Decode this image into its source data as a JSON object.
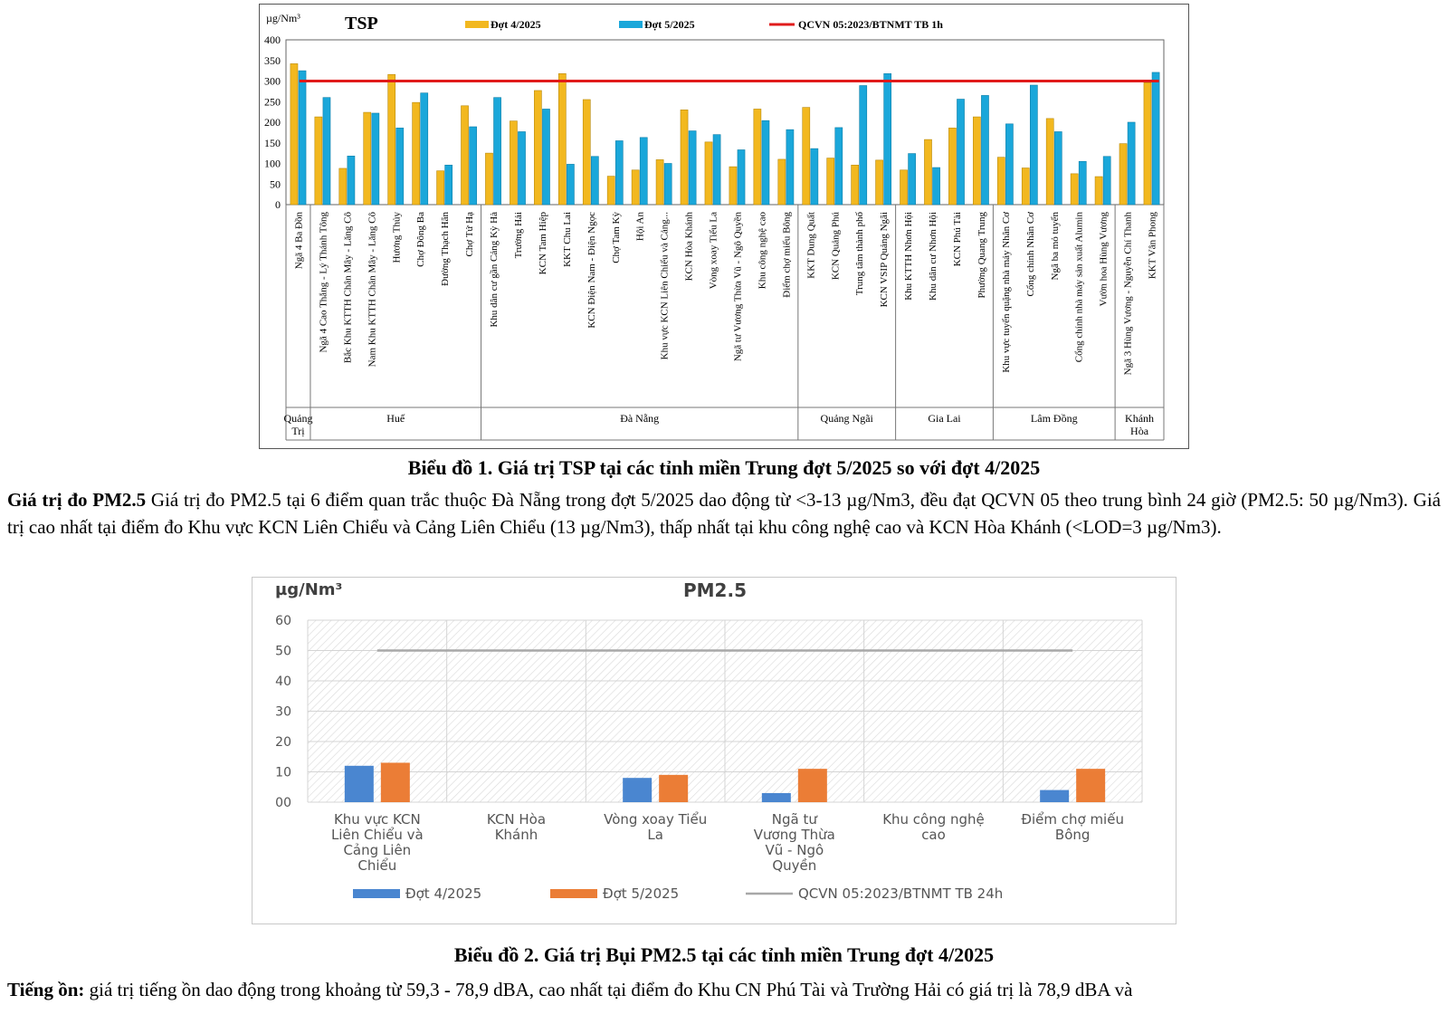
{
  "chart_data": [
    {
      "type": "bar",
      "title": "TSP",
      "ylabel": "µg/Nm³",
      "ylim": [
        0,
        400
      ],
      "yticks": [
        0,
        50,
        100,
        150,
        200,
        250,
        300,
        350,
        400
      ],
      "categories": [
        "Ngã 4 Ba Đồn",
        "Ngã 4 Cao Thắng - Lý Thánh Tông",
        "Bắc Khu KTTH Chân Mây - Lăng Cô",
        "Nam Khu KTTH Chân Mây - Lăng Cô",
        "Hương Thủy",
        "Chợ Đông Ba",
        "Đường Thạch Hãn",
        "Chợ Tứ Hạ",
        "Khu dân cư gần Cảng Kỳ Hà",
        "Trường Hải",
        "KCN Tam Hiệp",
        "KKT Chu Lai",
        "KCN Điện Nam - Điện Ngọc",
        "Chợ Tam Kỳ",
        "Hội An",
        "Khu vực KCN Liên Chiểu và Cảng...",
        "KCN Hòa Khánh",
        "Vòng xoay Tiểu La",
        "Ngã tư Vương Thừa Vũ - Ngô Quyền",
        "Khu công nghệ cao",
        "Điểm chợ miếu Bông",
        "KKT Dung Quất",
        "KCN Quảng Phú",
        "Trung tâm thành phố",
        "KCN VSIP Quảng Ngãi",
        "Khu KTTH Nhơn Hội",
        "Khu dân cư Nhơn Hội",
        "KCN Phú Tài",
        "Phường Quang Trung",
        "Khu vực tuyển quặng nhà máy Nhân Cơ",
        "Cổng chính Nhân Cơ",
        "Ngã ba mỏ tuyển",
        "Cổng chính nhà máy sản xuất Alumin",
        "Vườn hoa Hùng Vương",
        "Ngã 3 Hùng Vương - Nguyễn Chí Thanh",
        "KKT Vân Phong"
      ],
      "series": [
        {
          "name": "Đợt 4/2025",
          "color": "#F2B81F",
          "values": [
            342,
            213,
            88,
            224,
            316,
            248,
            82,
            240,
            125,
            203,
            277,
            318,
            255,
            69,
            84,
            109,
            230,
            152,
            92,
            232,
            110,
            236,
            113,
            96,
            108,
            84,
            158,
            186,
            213,
            115,
            89,
            209,
            75,
            68,
            148,
            296
          ]
        },
        {
          "name": "Đợt 5/2025",
          "color": "#1AA7DA",
          "values": [
            325,
            260,
            118,
            222,
            186,
            271,
            96,
            189,
            260,
            177,
            232,
            98,
            117,
            155,
            163,
            100,
            179,
            170,
            133,
            204,
            182,
            136,
            187,
            289,
            318,
            124,
            90,
            256,
            265,
            196,
            290,
            177,
            105,
            117,
            200,
            321
          ]
        }
      ],
      "reference_line": {
        "name": "QCVN 05:2023/BTNMT  TB 1h",
        "value": 300,
        "color": "#E01B1B"
      },
      "groups": [
        {
          "label": "Quảng Trị",
          "count": 1
        },
        {
          "label": "Huế",
          "count": 7
        },
        {
          "label": "Đà Nẵng",
          "count": 13
        },
        {
          "label": "Quảng Ngãi",
          "count": 4
        },
        {
          "label": "Gia Lai",
          "count": 4
        },
        {
          "label": "Lâm Đồng",
          "count": 5
        },
        {
          "label": "Khánh Hòa",
          "count": 2
        }
      ],
      "legend_position": "top",
      "grid": false
    },
    {
      "type": "bar",
      "title": "PM2.5",
      "ylabel": "µg/Nm³",
      "ylim": [
        0,
        60
      ],
      "yticks": [
        "00",
        "10",
        "20",
        "30",
        "40",
        "50",
        "60"
      ],
      "categories": [
        "Khu vực KCN Liên Chiểu và Cảng Liên Chiểu",
        "KCN Hòa Khánh",
        "Vòng xoay Tiểu La",
        "Ngã tư Vương Thừa Vũ - Ngô Quyền",
        "Khu công nghệ cao",
        "Điểm chợ miếu Bông"
      ],
      "series": [
        {
          "name": "Đợt 4/2025",
          "color": "#4A86D0",
          "values": [
            12,
            0,
            8,
            3,
            0,
            4
          ]
        },
        {
          "name": "Đợt 5/2025",
          "color": "#EB7D36",
          "values": [
            13,
            0,
            9,
            11,
            0,
            11
          ]
        }
      ],
      "reference_line": {
        "name": "QCVN 05:2023/BTNMT  TB 24h",
        "value": 50,
        "color": "#A8A8A8"
      },
      "legend_position": "bottom",
      "grid": true
    }
  ],
  "captions": {
    "chart1": "Biểu đồ 1. Giá trị TSP tại các tỉnh miền Trung đợt 5/2025 so với đợt 4/2025",
    "chart2": "Biểu đồ 2. Giá trị Bụi PM2.5 tại các tỉnh miền Trung đợt 4/2025"
  },
  "paragraphs": {
    "pm25_lead": "Giá trị đo PM2.5",
    "pm25_text": " Giá trị đo PM2.5 tại 6 điểm quan trắc thuộc Đà Nẵng trong đợt 5/2025 dao động từ <3-13 µg/Nm3, đều đạt QCVN 05 theo trung bình 24 giờ (PM2.5: 50 µg/Nm3). Giá trị cao nhất tại điểm đo Khu vực KCN Liên Chiểu và Cảng Liên Chiểu (13 µg/Nm3), thấp nhất tại khu công nghệ cao và KCN Hòa Khánh (<LOD=3 µg/Nm3).",
    "noise_lead": "Tiếng ồn:",
    "noise_text": " giá trị tiếng ồn dao động trong khoảng từ 59,3 - 78,9 dBA, cao nhất tại điểm đo Khu CN Phú Tài và Trường Hải có giá trị là 78,9 dBA và"
  }
}
